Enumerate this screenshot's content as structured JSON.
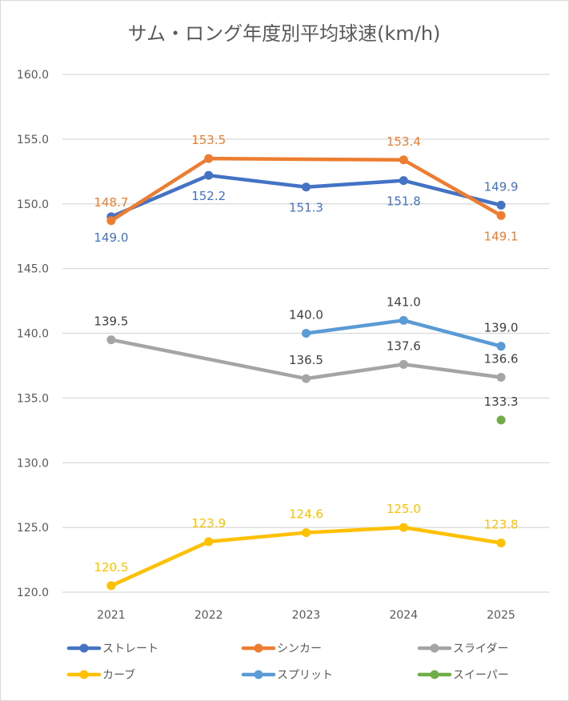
{
  "chart_data": {
    "type": "line",
    "title": "サム・ロング年度別平均球速(km/h)",
    "xlabel": "",
    "ylabel": "",
    "categories": [
      "2021",
      "2022",
      "2023",
      "2024",
      "2025"
    ],
    "ylim": [
      120.0,
      160.0
    ],
    "yticks": [
      "160.0",
      "155.0",
      "150.0",
      "145.0",
      "140.0",
      "135.0",
      "130.0",
      "125.0",
      "120.0"
    ],
    "grid": true,
    "legend_position": "bottom",
    "series": [
      {
        "name": "ストレート",
        "color": "#4472C4",
        "values": [
          149.0,
          152.2,
          151.3,
          151.8,
          149.9
        ],
        "labels": [
          "149.0",
          "152.2",
          "151.3",
          "151.8",
          "149.9"
        ],
        "label_pos": [
          "below",
          "below",
          "below",
          "below",
          "above"
        ],
        "label_color": "#4472C4"
      },
      {
        "name": "シンカー",
        "color": "#ED7D31",
        "values": [
          148.7,
          153.5,
          null,
          153.4,
          149.1
        ],
        "labels": [
          "148.7",
          "153.5",
          "",
          "153.4",
          "149.1"
        ],
        "label_pos": [
          "above",
          "above",
          "above",
          "above",
          "below"
        ],
        "label_color": "#ED7D31",
        "connect_gaps": true
      },
      {
        "name": "スライダー",
        "color": "#A5A5A5",
        "values": [
          139.5,
          null,
          136.5,
          137.6,
          136.6
        ],
        "labels": [
          "139.5",
          "",
          "136.5",
          "137.6",
          "136.6"
        ],
        "label_pos": [
          "above",
          "above",
          "above",
          "above",
          "above"
        ],
        "label_color": "#404040",
        "connect_gaps": true
      },
      {
        "name": "カーブ",
        "color": "#FFC000",
        "values": [
          120.5,
          123.9,
          124.6,
          125.0,
          123.8
        ],
        "labels": [
          "120.5",
          "123.9",
          "124.6",
          "125.0",
          "123.8"
        ],
        "label_pos": [
          "above",
          "above",
          "above",
          "above",
          "above"
        ],
        "label_color": "#FFC000"
      },
      {
        "name": "スプリット",
        "color": "#5B9BD5",
        "values": [
          null,
          null,
          140.0,
          141.0,
          139.0
        ],
        "labels": [
          "",
          "",
          "140.0",
          "141.0",
          "139.0"
        ],
        "label_pos": [
          "above",
          "above",
          "above",
          "above",
          "above"
        ],
        "label_color": "#404040"
      },
      {
        "name": "スイーパー",
        "color": "#70AD47",
        "values": [
          null,
          null,
          null,
          null,
          133.3
        ],
        "labels": [
          "",
          "",
          "",
          "",
          "133.3"
        ],
        "label_pos": [
          "above",
          "above",
          "above",
          "above",
          "above"
        ],
        "label_color": "#404040"
      }
    ]
  }
}
